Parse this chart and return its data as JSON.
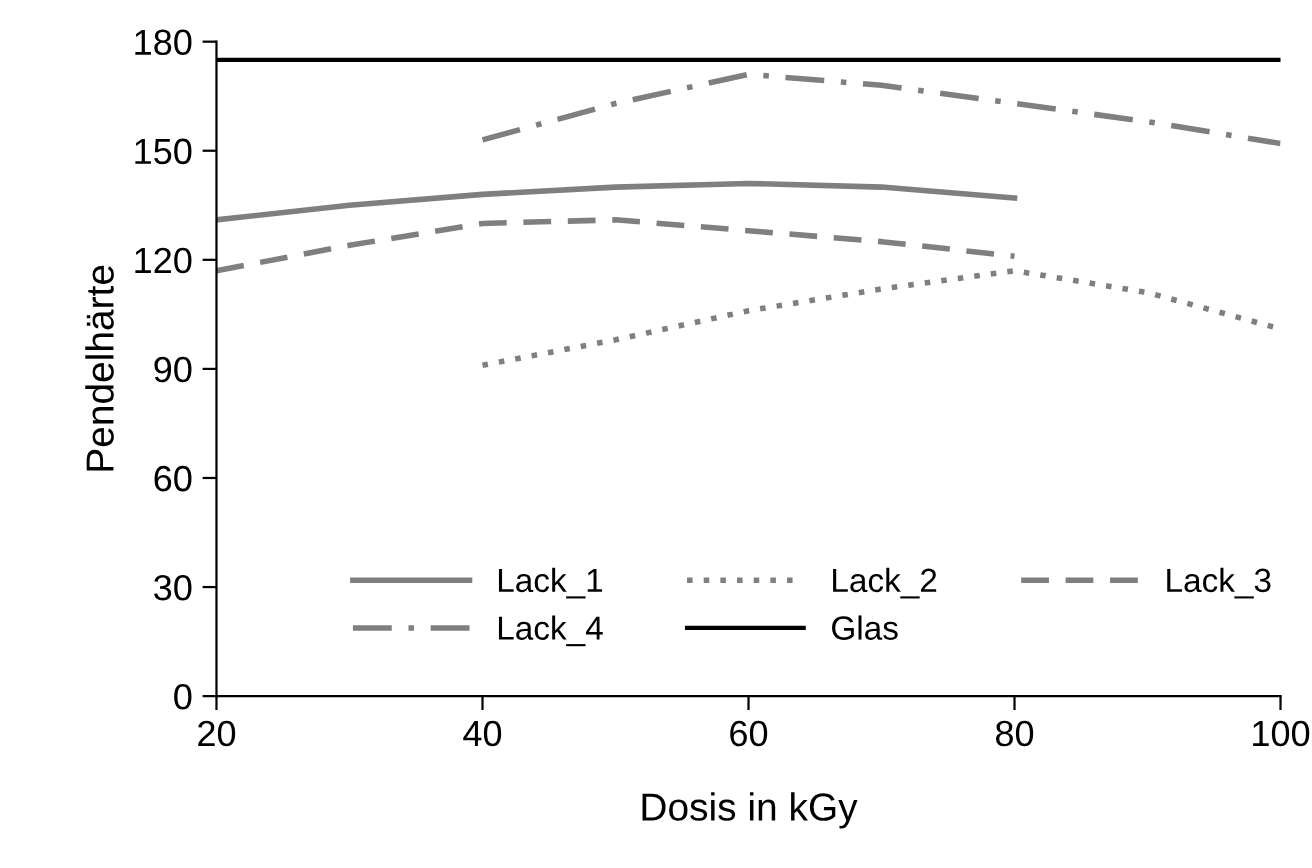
{
  "chart_data": {
    "type": "line",
    "xlabel": "Dosis in kGy",
    "ylabel": "Pendelhärte",
    "xlim": [
      20,
      100
    ],
    "xticks": [
      20,
      40,
      60,
      80,
      100
    ],
    "ylim": [
      0,
      180
    ],
    "yticks": [
      0,
      30,
      60,
      90,
      120,
      150,
      180
    ],
    "grid": false,
    "legend": "bottom",
    "marker": "none",
    "series": [
      {
        "name": "Lack_1",
        "color": "#7f7f7f",
        "line_style": "solid",
        "x": [
          20,
          30,
          40,
          50,
          60,
          70,
          80
        ],
        "values": [
          131,
          135,
          138,
          140,
          141,
          140,
          137
        ]
      },
      {
        "name": "Lack_2",
        "color": "#7f7f7f",
        "line_style": "dotted",
        "x": [
          40,
          50,
          60,
          70,
          80,
          90,
          100
        ],
        "values": [
          91,
          98,
          106,
          112,
          117,
          111,
          101
        ]
      },
      {
        "name": "Lack_3",
        "color": "#7f7f7f",
        "line_style": "dashed",
        "x": [
          20,
          30,
          40,
          50,
          60,
          70,
          80
        ],
        "values": [
          117,
          124,
          130,
          131,
          128,
          125,
          121
        ]
      },
      {
        "name": "Lack_4",
        "color": "#7f7f7f",
        "line_style": "dashdot",
        "x": [
          40,
          50,
          60,
          70,
          80,
          90,
          100
        ],
        "values": [
          153,
          163,
          171,
          168,
          163,
          158,
          152
        ]
      },
      {
        "name": "Glas",
        "color": "#000000",
        "line_style": "solid",
        "x": [
          20,
          100
        ],
        "values": [
          175,
          175
        ]
      }
    ]
  }
}
